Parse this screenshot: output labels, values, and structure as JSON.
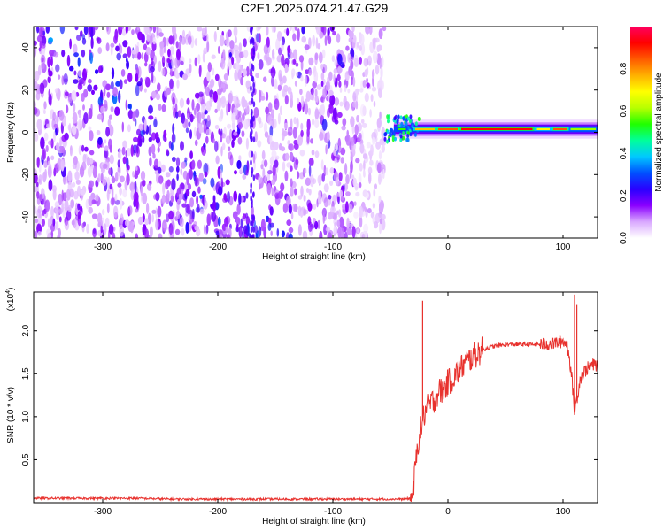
{
  "title": "C2E1.2025.074.21.47.G29",
  "chart_data": [
    {
      "type": "heatmap",
      "xlabel": "Height of straight line (km)",
      "ylabel": "Frequency (Hz)",
      "xlim": [
        -360,
        130
      ],
      "ylim": [
        -50,
        50
      ],
      "xticks": [
        -300,
        -200,
        -100,
        0,
        100
      ],
      "yticks": [
        -40,
        -20,
        0,
        20,
        40
      ],
      "colorbar": {
        "label": "Normalized spectral amplitude",
        "range": [
          0,
          1
        ],
        "ticks": [
          0.0,
          0.2,
          0.4,
          0.6,
          0.8
        ],
        "colors": [
          "#ffffff",
          "#d9a8ff",
          "#8a00ff",
          "#2a00ff",
          "#0050ff",
          "#00c8ff",
          "#00ff9a",
          "#20ff00",
          "#b8ff00",
          "#ffff00",
          "#ffb000",
          "#ff5a00",
          "#ff0000",
          "#ff0060"
        ]
      },
      "regions": [
        {
          "description_key": "broadband",
          "x": [
            -360,
            -55
          ],
          "y": [
            -50,
            50
          ]
        },
        {
          "description_key": "carrier",
          "x": [
            -55,
            130
          ],
          "y_center": 1.5
        }
      ]
    },
    {
      "type": "line",
      "xlabel": "Height of straight line (km)",
      "ylabel": "SNR (10 * v/v)",
      "y_scale_label": "(x10",
      "y_scale_exp": "4",
      "y_scale_close": ")",
      "xlim": [
        -360,
        130
      ],
      "ylim": [
        0,
        2.45
      ],
      "xticks": [
        -300,
        -200,
        -100,
        0,
        100
      ],
      "yticks": [
        0.5,
        1.0,
        1.5,
        2.0
      ],
      "ytick_labels": [
        "0.5",
        "1.0",
        "1.5",
        "2.0"
      ],
      "color": "#e8322e",
      "series": [
        {
          "x": [
            -360,
            -330,
            -300,
            -270,
            -240,
            -210,
            -180,
            -150,
            -120,
            -90,
            -60,
            -40,
            -32,
            -30,
            -28,
            -26,
            -24,
            -22,
            -20,
            -18,
            -15,
            -12,
            -10,
            -8,
            -5,
            -2,
            0,
            5,
            10,
            15,
            20,
            25,
            30,
            40,
            50,
            60,
            70,
            80,
            90,
            95,
            100,
            103,
            105,
            108,
            110,
            112,
            115,
            120,
            125,
            130
          ],
          "y": [
            0.05,
            0.05,
            0.05,
            0.05,
            0.04,
            0.04,
            0.04,
            0.04,
            0.04,
            0.04,
            0.04,
            0.04,
            0.05,
            0.15,
            0.45,
            0.7,
            0.85,
            0.95,
            1.05,
            1.1,
            1.15,
            1.2,
            1.25,
            1.3,
            1.3,
            1.35,
            1.4,
            1.45,
            1.55,
            1.62,
            1.68,
            1.73,
            1.78,
            1.82,
            1.84,
            1.84,
            1.84,
            1.84,
            1.85,
            1.86,
            1.88,
            1.85,
            1.75,
            1.4,
            1.05,
            1.2,
            1.45,
            1.55,
            1.6,
            1.6
          ]
        }
      ],
      "spikes": [
        {
          "x": -22,
          "y": 2.35
        },
        {
          "x": 110,
          "y": 2.42
        },
        {
          "x": 112,
          "y": 2.3
        }
      ]
    }
  ]
}
